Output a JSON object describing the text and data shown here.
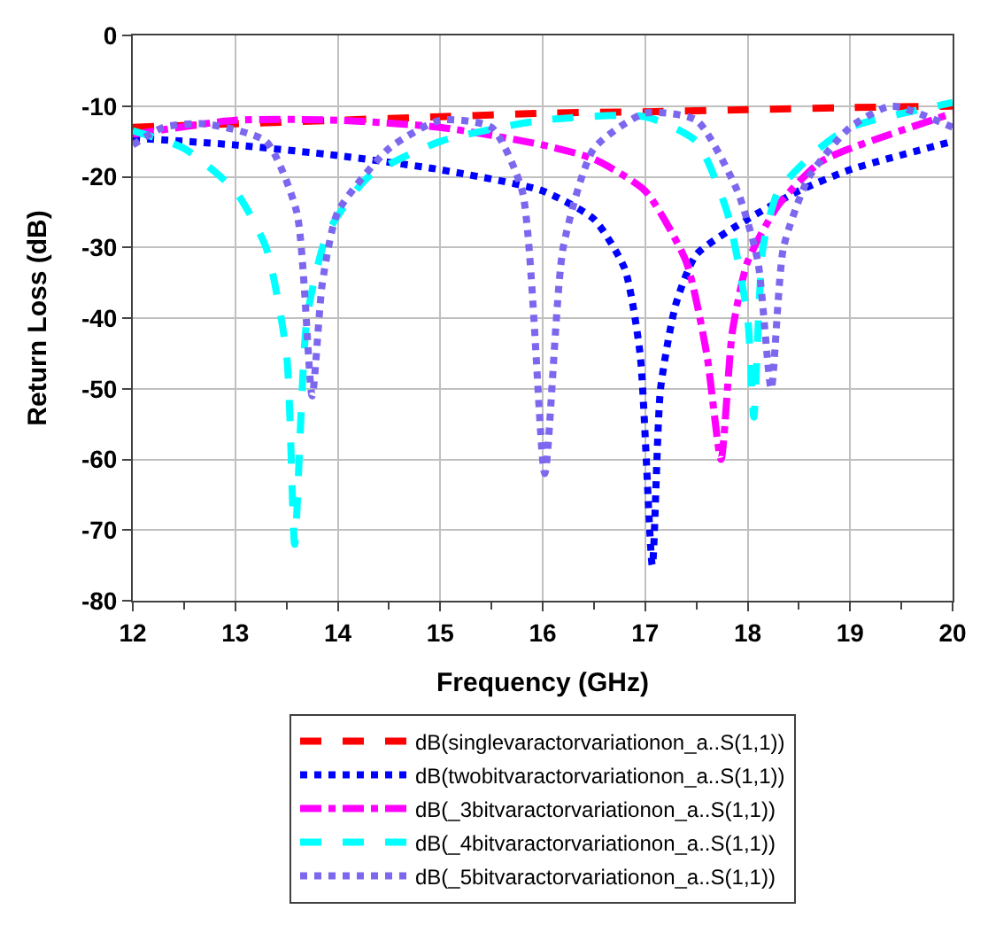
{
  "chart_data": {
    "type": "line",
    "xlabel": "Frequency (GHz)",
    "ylabel": "Return Loss (dB)",
    "xlim": [
      12,
      20
    ],
    "ylim": [
      -80,
      0
    ],
    "xticks": [
      12,
      13,
      14,
      15,
      16,
      17,
      18,
      19,
      20
    ],
    "yticks": [
      0,
      -10,
      -20,
      -30,
      -40,
      -50,
      -60,
      -70,
      -80
    ],
    "grid": true,
    "legend": "bottom",
    "marker": "none",
    "series": [
      {
        "name": "dB(singlevaractorvariationon_a..S(1,1))",
        "color": "#ff0000",
        "line_style": "dashed",
        "x": [
          12,
          13,
          14,
          15,
          16,
          17,
          18,
          19,
          20
        ],
        "values": [
          -13,
          -12.5,
          -12,
          -11.5,
          -11,
          -10.8,
          -10.5,
          -10.2,
          -10
        ]
      },
      {
        "name": "dB(twobitvaractorvariationon_a..S(1,1))",
        "color": "#0000ff",
        "line_style": "dotted",
        "x": [
          12,
          13,
          14,
          15,
          16,
          16.5,
          16.8,
          16.95,
          17.07,
          17.15,
          17.3,
          17.5,
          18,
          18.5,
          19,
          20
        ],
        "values": [
          -14.5,
          -15.5,
          -17,
          -19,
          -22,
          -26,
          -33,
          -45,
          -75,
          -50,
          -38,
          -31,
          -26,
          -22,
          -19,
          -15
        ]
      },
      {
        "name": "dB(_3bitvaractorvariationon_a..S(1,1))",
        "color": "#ff00ff",
        "line_style": "dashdot",
        "x": [
          12,
          13,
          14,
          15,
          16,
          16.5,
          17,
          17.4,
          17.6,
          17.74,
          17.85,
          18,
          18.3,
          18.7,
          19,
          20
        ],
        "values": [
          -14,
          -12,
          -12,
          -13,
          -15.5,
          -17.5,
          -22,
          -32,
          -45,
          -60,
          -42,
          -32,
          -24,
          -18,
          -16,
          -11
        ]
      },
      {
        "name": "dB(_4bitvaractorvariationon_a..S(1,1))",
        "color": "#00ffff",
        "line_style": "dashed",
        "x": [
          12,
          12.5,
          13,
          13.3,
          13.5,
          13.58,
          13.7,
          13.9,
          14.3,
          15,
          16,
          17,
          17.5,
          17.8,
          18,
          18.06,
          18.15,
          18.3,
          18.7,
          19,
          20
        ],
        "values": [
          -13.5,
          -16,
          -22,
          -30,
          -45,
          -72,
          -40,
          -28,
          -20,
          -15,
          -12,
          -11.5,
          -15,
          -25,
          -40,
          -54,
          -30,
          -22,
          -16,
          -13,
          -9.5
        ]
      },
      {
        "name": "dB(_5bitvaractorvariationon_a..S(1,1))",
        "color": "#7b68ee",
        "line_style": "dotted",
        "x": [
          12,
          12.3,
          12.7,
          13.3,
          13.6,
          13.75,
          13.85,
          14,
          14.5,
          15,
          15.5,
          15.8,
          16.02,
          16.2,
          16.5,
          17,
          17.5,
          17.9,
          18.1,
          18.23,
          18.35,
          18.6,
          19,
          19.4,
          20
        ],
        "values": [
          -15.5,
          -13,
          -12.5,
          -15,
          -25,
          -51,
          -35,
          -25,
          -16,
          -12,
          -13,
          -22,
          -62,
          -30,
          -16,
          -11,
          -12,
          -22,
          -32,
          -50,
          -30,
          -20,
          -13,
          -10,
          -13
        ]
      }
    ]
  }
}
